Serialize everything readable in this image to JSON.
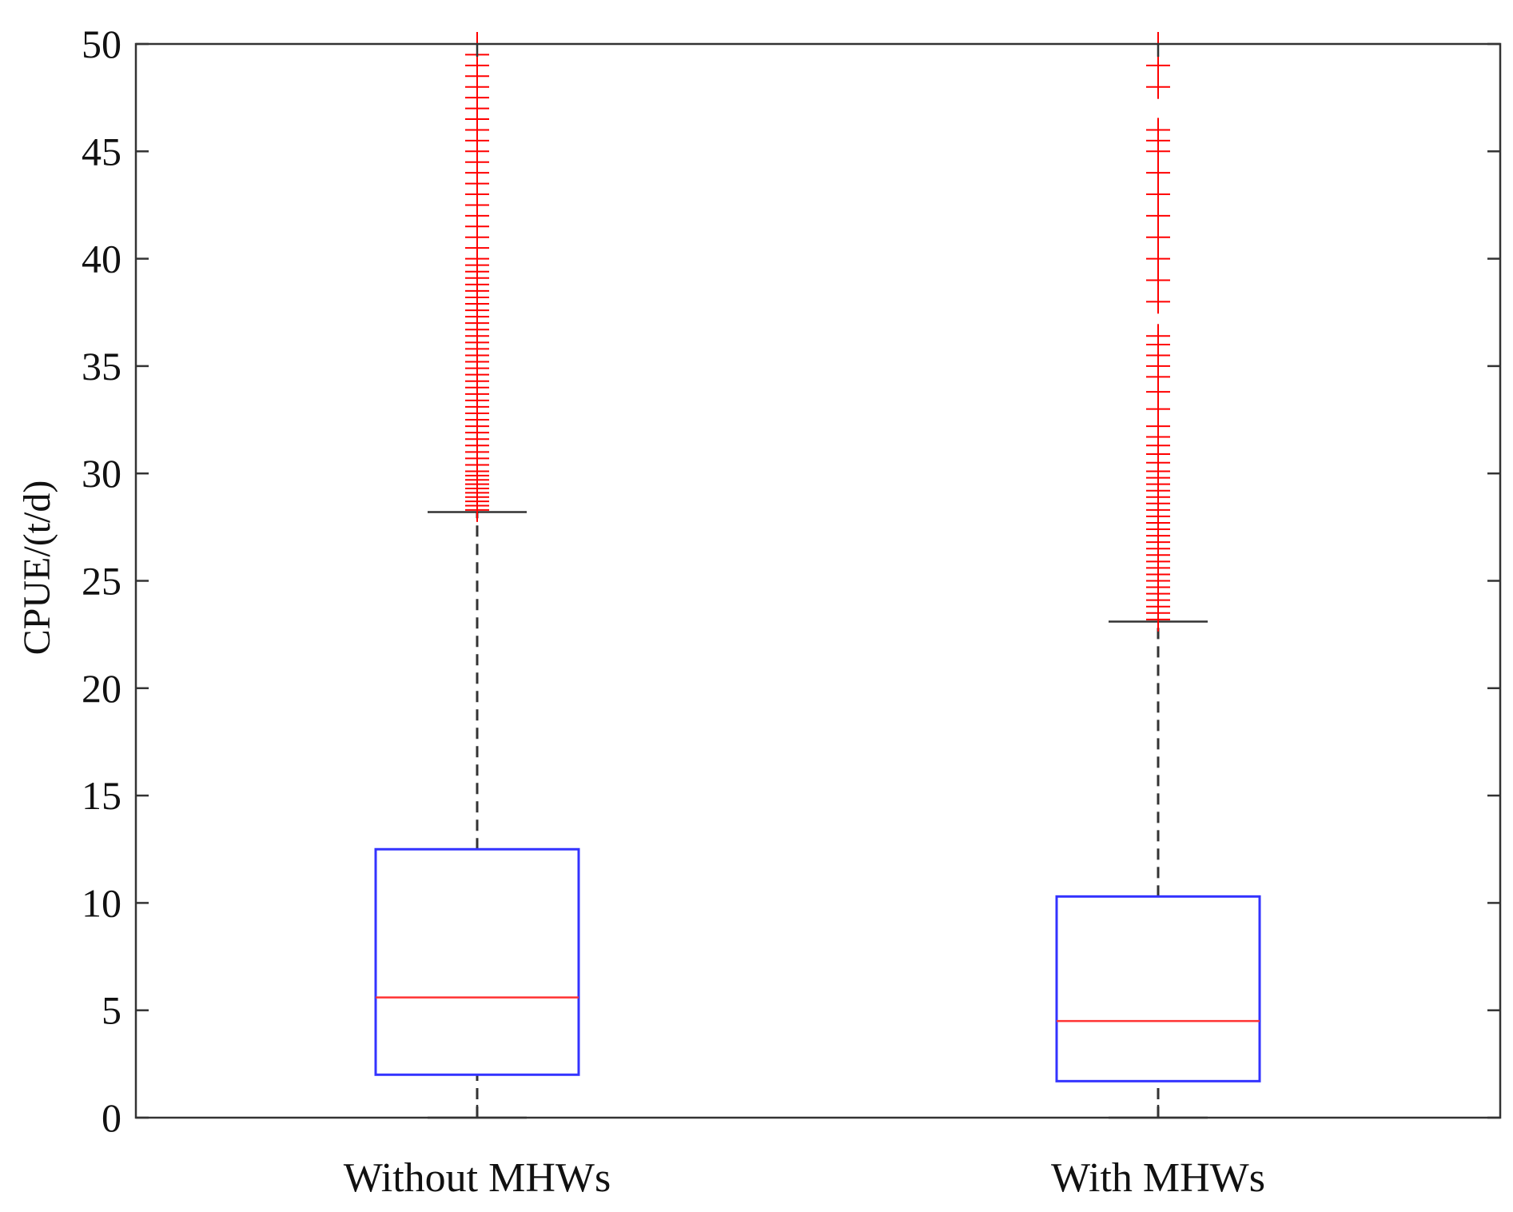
{
  "chart_data": {
    "type": "box",
    "ylabel": "CPUE/(t/d)",
    "xlabel": "",
    "title": "",
    "ylim": [
      0,
      50
    ],
    "yticks": [
      0,
      5,
      10,
      15,
      20,
      25,
      30,
      35,
      40,
      45,
      50
    ],
    "grid": false,
    "categories": [
      "Without MHWs",
      "With MHWs"
    ],
    "boxes": [
      {
        "category": "Without MHWs",
        "whisker_low": 0,
        "q1": 2.0,
        "median": 5.6,
        "q3": 12.5,
        "whisker_high": 28.2,
        "outliers": [
          28.3,
          28.5,
          28.7,
          28.9,
          29.1,
          29.3,
          29.5,
          29.7,
          29.9,
          30.1,
          30.4,
          30.7,
          31.0,
          31.3,
          31.6,
          31.9,
          32.2,
          32.5,
          32.8,
          33.1,
          33.4,
          33.7,
          34.0,
          34.3,
          34.6,
          34.9,
          35.2,
          35.5,
          35.8,
          36.1,
          36.4,
          36.7,
          37.0,
          37.3,
          37.6,
          37.9,
          38.2,
          38.5,
          38.8,
          39.1,
          39.4,
          39.7,
          40.0,
          40.5,
          41.0,
          41.5,
          42.0,
          42.5,
          43.0,
          43.5,
          44.0,
          44.5,
          45.0,
          45.5,
          46.0,
          46.5,
          47.0,
          47.5,
          48.0,
          48.5,
          49.0,
          49.5,
          50.0
        ]
      },
      {
        "category": "With MHWs",
        "whisker_low": 0,
        "q1": 1.7,
        "median": 4.5,
        "q3": 10.3,
        "whisker_high": 23.1,
        "outliers": [
          23.2,
          23.5,
          23.8,
          24.1,
          24.4,
          24.7,
          25.0,
          25.3,
          25.6,
          25.9,
          26.2,
          26.5,
          26.8,
          27.1,
          27.4,
          27.7,
          28.0,
          28.3,
          28.6,
          28.9,
          29.2,
          29.5,
          29.8,
          30.1,
          30.5,
          30.9,
          31.3,
          31.7,
          32.2,
          33.0,
          33.8,
          34.5,
          35.0,
          35.5,
          36.0,
          36.4,
          38.0,
          39.0,
          40.0,
          41.0,
          42.0,
          43.0,
          44.0,
          45.0,
          45.5,
          46.0,
          48.0,
          49.0,
          50.0
        ]
      }
    ],
    "colors": {
      "box": "#3333ff",
      "median": "#ff3333",
      "outlier": "#ff0000",
      "whisker": "#333333",
      "axis": "#333333"
    }
  }
}
